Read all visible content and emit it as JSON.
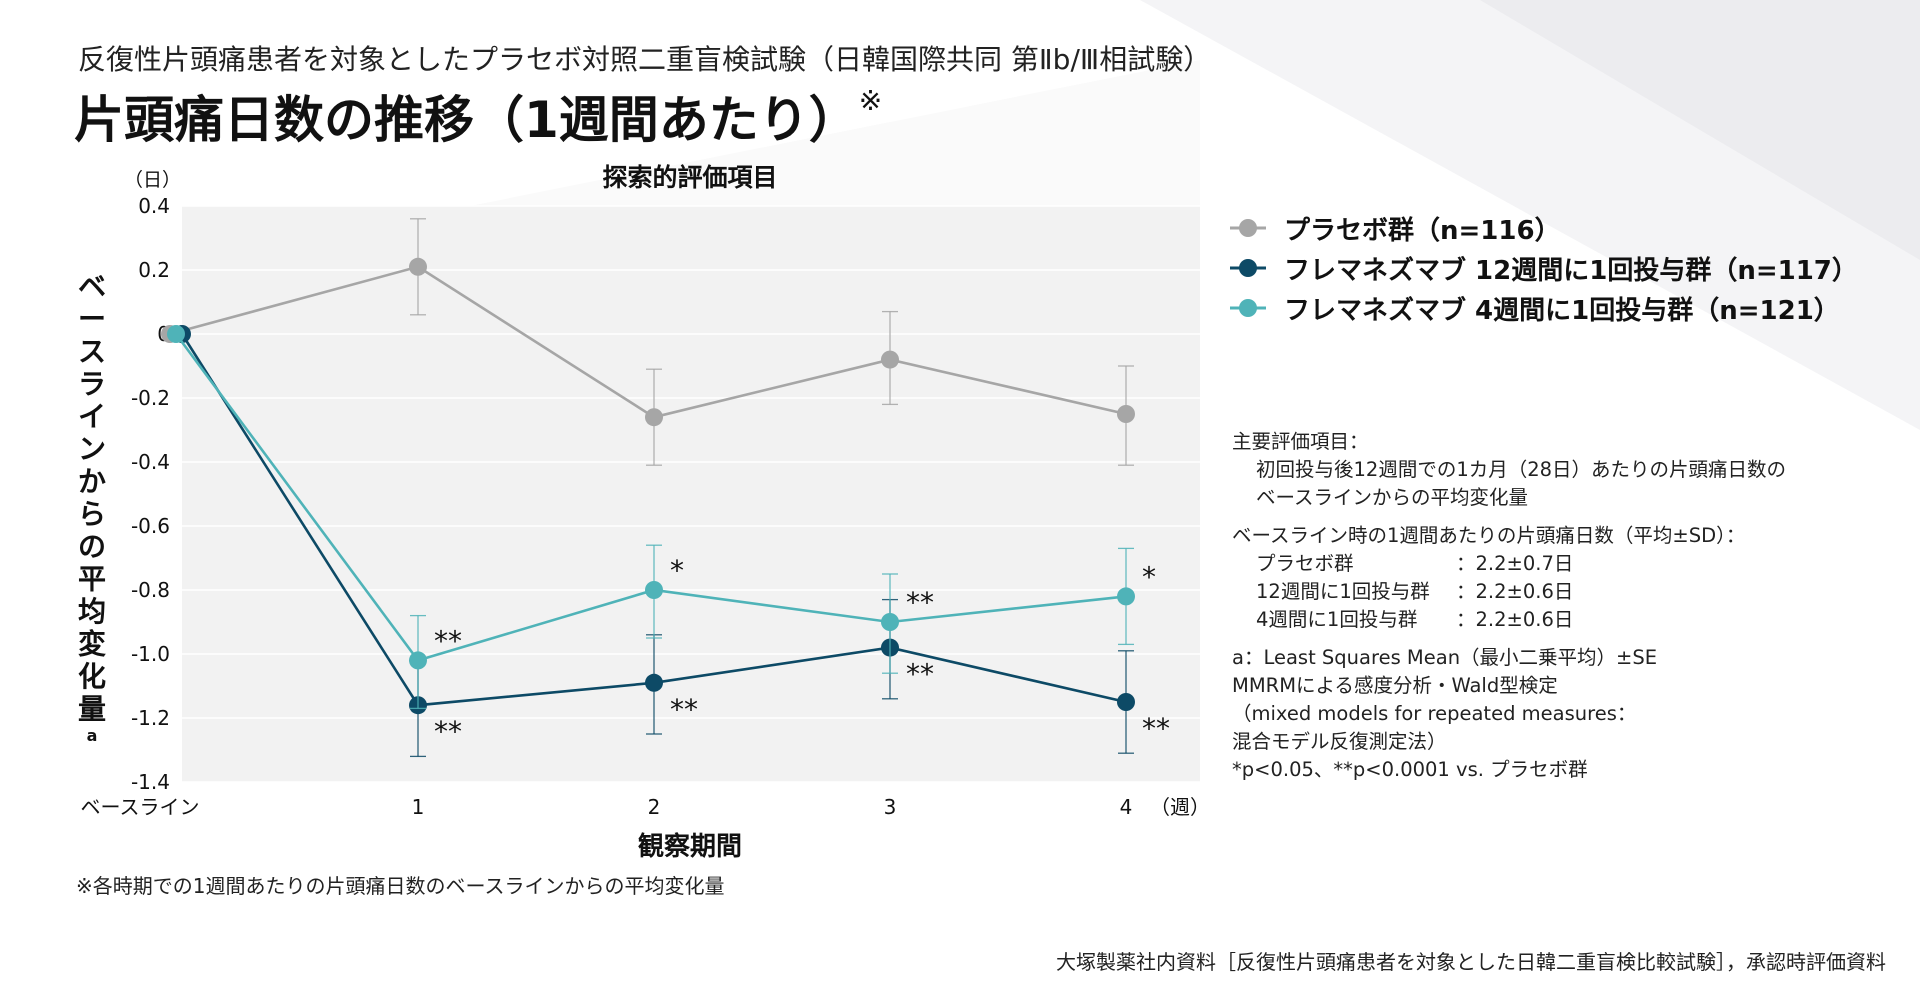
{
  "subtitle": "反復性片頭痛患者を対象としたプラセボ対照二重盲検試験（日韓国際共同 第Ⅱb/Ⅲ相試験）",
  "title": "片頭痛日数の推移（1週間あたり）",
  "title_mark": "※",
  "chart_data": {
    "type": "line",
    "title": "探索的評価項目",
    "xlabel": "観察期間",
    "ylabel": "ベースラインからの平均変化量",
    "ylabel_suffix": "a",
    "yunit": "（日）",
    "xunit": "（週）",
    "categories": [
      "ベースライン",
      "1",
      "2",
      "3",
      "4"
    ],
    "ylim": [
      -1.4,
      0.4
    ],
    "yticks": [
      "0.4",
      "0.2",
      "0",
      "-0.2",
      "-0.4",
      "-0.6",
      "-0.8",
      "-1.0",
      "-1.2",
      "-1.4"
    ],
    "ytick_values": [
      0.4,
      0.2,
      0,
      -0.2,
      -0.4,
      -0.6,
      -0.8,
      -1.0,
      -1.2,
      -1.4
    ],
    "grid": true,
    "legend_position": "right",
    "series": [
      {
        "name": "プラセボ群（n=116）",
        "color": "#a6a6a6",
        "values": [
          0,
          0.21,
          -0.26,
          -0.08,
          -0.25
        ],
        "err_high": [
          0,
          0.36,
          -0.11,
          0.07,
          -0.1
        ],
        "err_low": [
          0,
          0.06,
          -0.41,
          -0.22,
          -0.41
        ],
        "sig": [
          "",
          "",
          "",
          "",
          ""
        ]
      },
      {
        "name": "フレマネズマブ 12週間に1回投与群（n=117）",
        "color": "#0d4a66",
        "values": [
          0,
          -1.16,
          -1.09,
          -0.98,
          -1.15
        ],
        "err_high": [
          0,
          -1.01,
          -0.94,
          -0.83,
          -0.99
        ],
        "err_low": [
          0,
          -1.32,
          -1.25,
          -1.14,
          -1.31
        ],
        "sig": [
          "",
          "**",
          "**",
          "**",
          "**"
        ]
      },
      {
        "name": "フレマネズマブ 4週間に1回投与群（n=121）",
        "color": "#4fb3b8",
        "values": [
          0,
          -1.02,
          -0.8,
          -0.9,
          -0.82
        ],
        "err_high": [
          0,
          -0.88,
          -0.66,
          -0.75,
          -0.67
        ],
        "err_low": [
          0,
          -1.17,
          -0.95,
          -1.06,
          -0.97
        ],
        "sig": [
          "",
          "**",
          "*",
          "**",
          "*"
        ]
      }
    ]
  },
  "notes": {
    "primary_label": "主要評価項目：",
    "primary_line1": "初回投与後12週間での1カ月（28日）あたりの片頭痛日数の",
    "primary_line2": "ベースラインからの平均変化量",
    "baseline_label": "ベースライン時の1週間あたりの片頭痛日数（平均±SD）：",
    "baseline_rows": [
      {
        "group": "プラセボ群",
        "value": "：2.2±0.7日"
      },
      {
        "group": "12週間に1回投与群",
        "value": "：2.2±0.6日"
      },
      {
        "group": "4週間に1回投与群",
        "value": "：2.2±0.6日"
      }
    ],
    "method_lines": [
      "a：Least Squares Mean（最小二乗平均）±SE",
      "MMRMによる感度分析・Wald型検定",
      "（mixed models for repeated measures：",
      "混合モデル反復測定法）",
      "*p<0.05、**p<0.0001 vs. プラセボ群"
    ]
  },
  "footnote": "※各時期での1週間あたりの片頭痛日数のベースラインからの平均変化量",
  "source": "大塚製薬社内資料［反復性片頭痛患者を対象とした日韓二重盲検比較試験］，承認時評価資料"
}
